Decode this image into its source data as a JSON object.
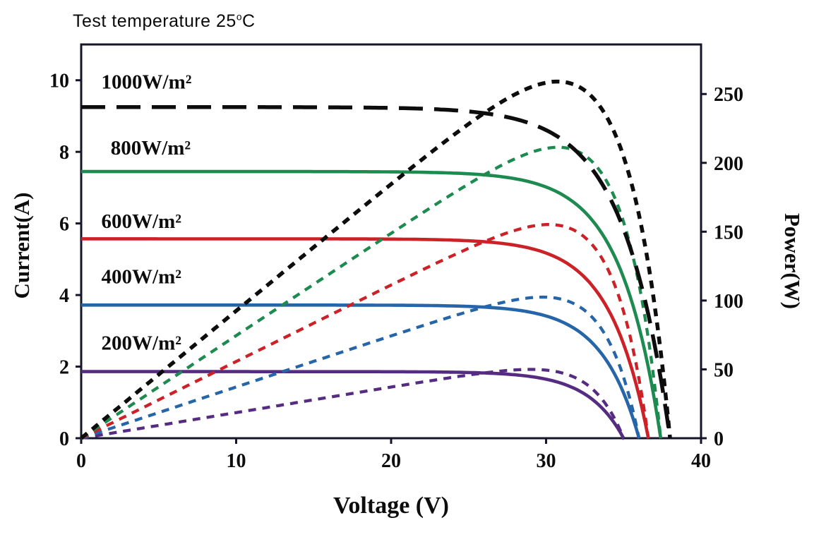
{
  "title": {
    "prefix": "Test  temperature 25",
    "sup": "o",
    "suffix": "C"
  },
  "chart_data": {
    "type": "line",
    "title": "Test temperature 25°C",
    "xlabel": "Voltage (V)",
    "ylabel_left": "Current(A)",
    "ylabel_right": "Power(W)",
    "xlim": [
      0,
      40
    ],
    "ylim_left": [
      0,
      11
    ],
    "ylim_right": [
      0,
      286
    ],
    "x_ticks": [
      0,
      10,
      20,
      30,
      40
    ],
    "y_left_ticks": [
      0,
      2,
      4,
      6,
      8,
      10
    ],
    "y_right_ticks": [
      0,
      50,
      100,
      150,
      200,
      250
    ],
    "grid": false,
    "legend_position": "inline-labels-left",
    "description": "Solar PV I-V curves (current vs voltage) and P-V curves (power vs voltage, dashed) at five irradiance levels, test temperature 25 C",
    "series": [
      {
        "label": "1000W/m²",
        "color": "#0d0d0d",
        "isc_A": 9.25,
        "voc_V": 38.0,
        "knee_a": 3.0,
        "pmax_W": 260,
        "vmp_V": 30.8,
        "iv_style": "long-dash",
        "pv_style": "short-dash",
        "label_anchor": {
          "v": 1.3,
          "i": 9.95
        }
      },
      {
        "label": "800W/m²",
        "color": "#1d8a4f",
        "isc_A": 7.45,
        "voc_V": 37.4,
        "knee_a": 2.6,
        "pmax_W": 211,
        "vmp_V": 30.8,
        "iv_style": "solid",
        "pv_style": "short-dash",
        "label_anchor": {
          "v": 1.9,
          "i": 8.1
        }
      },
      {
        "label": "600W/m²",
        "color": "#cc2127",
        "isc_A": 5.57,
        "voc_V": 36.6,
        "knee_a": 2.5,
        "pmax_W": 156,
        "vmp_V": 30.2,
        "iv_style": "solid",
        "pv_style": "short-dash",
        "label_anchor": {
          "v": 1.3,
          "i": 6.05
        }
      },
      {
        "label": "400W/m²",
        "color": "#2565a8",
        "isc_A": 3.72,
        "voc_V": 36.0,
        "knee_a": 2.4,
        "pmax_W": 103,
        "vmp_V": 29.8,
        "iv_style": "solid",
        "pv_style": "short-dash",
        "label_anchor": {
          "v": 1.3,
          "i": 4.5
        }
      },
      {
        "label": "200W/m²",
        "color": "#562c83",
        "isc_A": 1.86,
        "voc_V": 35.0,
        "knee_a": 2.3,
        "pmax_W": 50,
        "vmp_V": 29.0,
        "iv_style": "solid",
        "pv_style": "short-dash",
        "label_anchor": {
          "v": 1.3,
          "i": 2.65
        }
      }
    ]
  }
}
